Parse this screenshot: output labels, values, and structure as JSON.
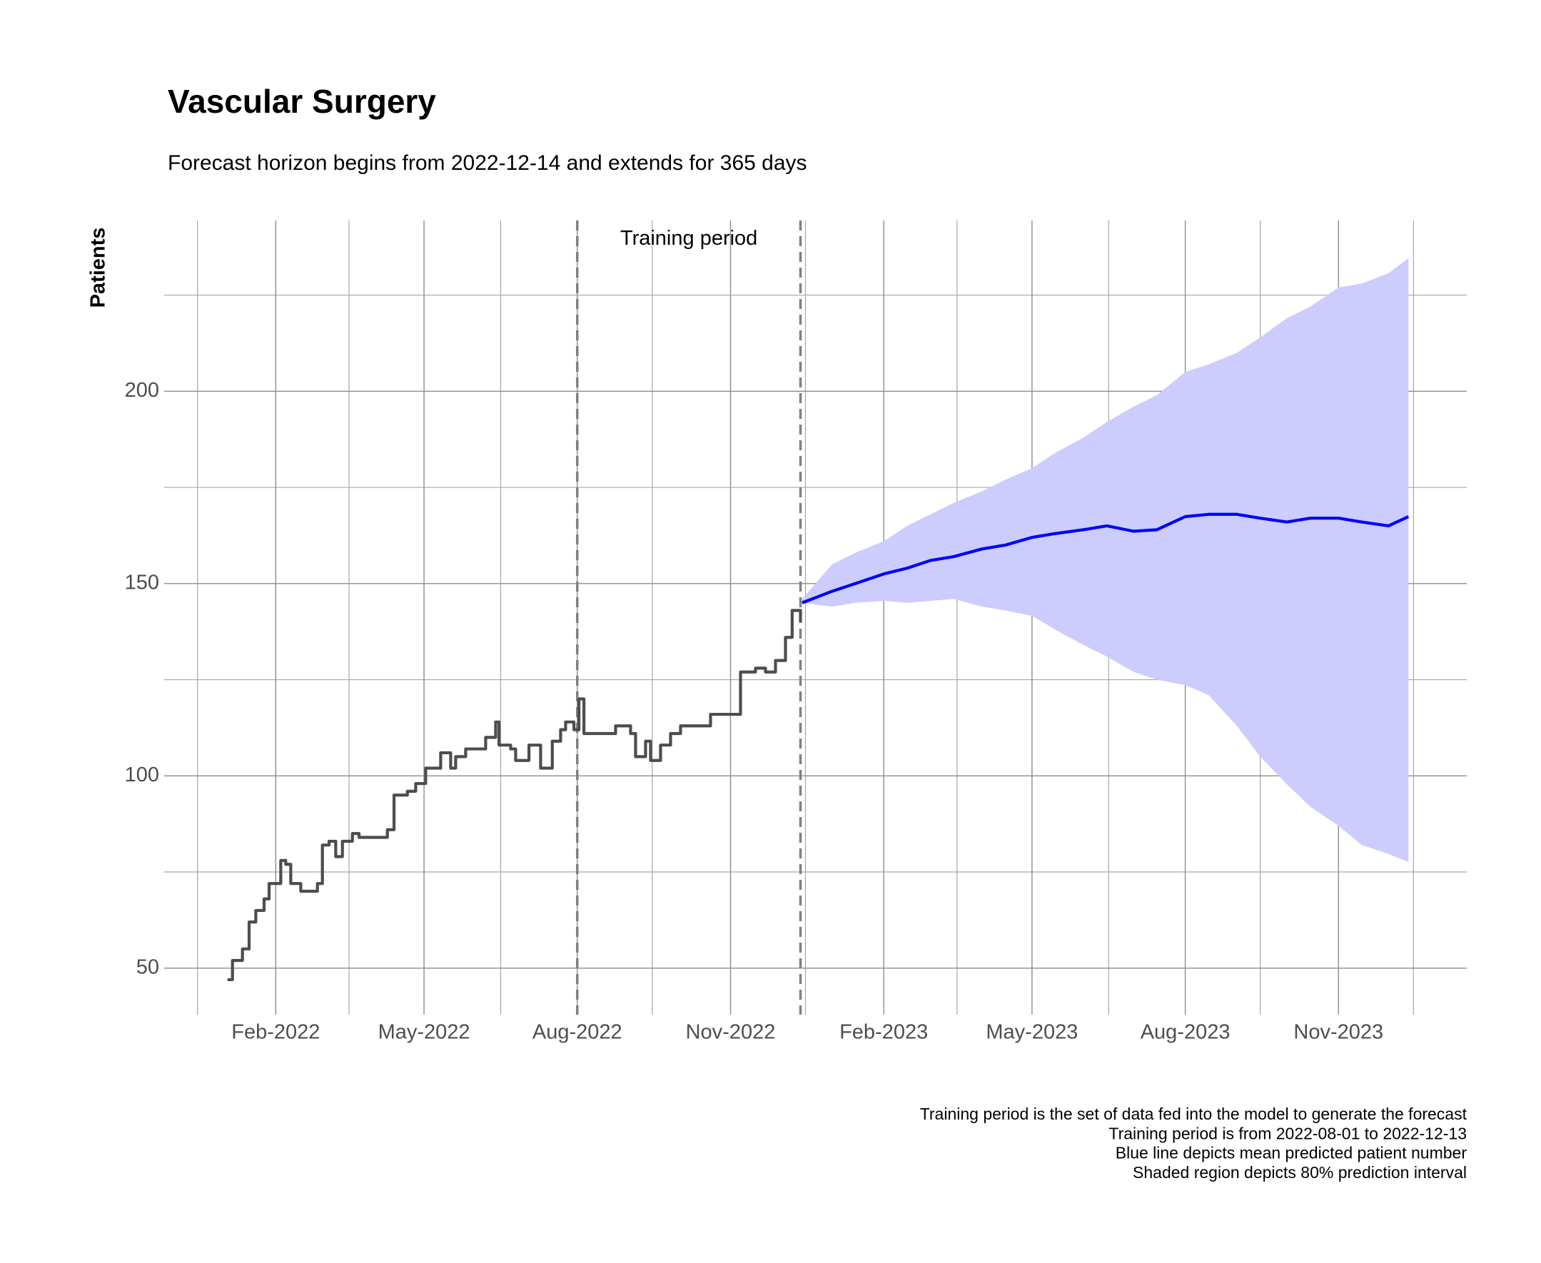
{
  "chart_data": {
    "type": "forecast",
    "title": "Vascular Surgery",
    "subtitle": "Forecast horizon begins from 2022-12-14 and extends for 365 days",
    "y_label": "Patients",
    "annotation": {
      "text": "Training period",
      "x": "2022-10-07",
      "y": 239.5
    },
    "vlines": [
      "2022-08-01",
      "2022-12-13"
    ],
    "caption": [
      "Training period is the set of data fed into the model to generate the forecast",
      "Training period is from 2022-08-01 to 2022-12-13",
      "Blue line depicts mean predicted patient number",
      "Shaded region depicts 80% prediction interval"
    ],
    "grid": true,
    "xlim": [
      "2021-11-26",
      "2024-01-17"
    ],
    "ylim": [
      37.9,
      244.4
    ],
    "xticks": [
      {
        "value": "2022-02-01",
        "label": "Feb-2022"
      },
      {
        "value": "2022-05-01",
        "label": "May-2022"
      },
      {
        "value": "2022-08-01",
        "label": "Aug-2022"
      },
      {
        "value": "2022-11-01",
        "label": "Nov-2022"
      },
      {
        "value": "2023-02-01",
        "label": "Feb-2023"
      },
      {
        "value": "2023-05-01",
        "label": "May-2023"
      },
      {
        "value": "2023-08-01",
        "label": "Aug-2023"
      },
      {
        "value": "2023-11-01",
        "label": "Nov-2023"
      }
    ],
    "x_minor_ticks": [
      "2021-12-16",
      "2022-03-17",
      "2022-06-16",
      "2022-09-15",
      "2022-12-16",
      "2023-03-17",
      "2023-06-16",
      "2023-09-15",
      "2023-12-16"
    ],
    "yticks": [
      50,
      100,
      150,
      200
    ],
    "y_minor_ticks": [
      75,
      125,
      175,
      225
    ],
    "history": {
      "color": "#4d4d4d",
      "x": [
        "2022-01-03",
        "2022-01-06",
        "2022-01-12",
        "2022-01-16",
        "2022-01-20",
        "2022-01-25",
        "2022-01-28",
        "2022-02-01",
        "2022-02-04",
        "2022-02-07",
        "2022-02-10",
        "2022-02-16",
        "2022-02-24",
        "2022-02-26",
        "2022-03-01",
        "2022-03-05",
        "2022-03-09",
        "2022-03-13",
        "2022-03-19",
        "2022-03-23",
        "2022-04-09",
        "2022-04-13",
        "2022-04-21",
        "2022-04-26",
        "2022-05-02",
        "2022-05-11",
        "2022-05-17",
        "2022-05-20",
        "2022-05-26",
        "2022-06-07",
        "2022-06-13",
        "2022-06-15",
        "2022-06-22",
        "2022-06-25",
        "2022-07-01",
        "2022-07-03",
        "2022-07-10",
        "2022-07-14",
        "2022-07-17",
        "2022-07-22",
        "2022-07-25",
        "2022-07-30",
        "2022-08-02",
        "2022-08-05",
        "2022-08-09",
        "2022-08-21",
        "2022-08-24",
        "2022-09-02",
        "2022-09-05",
        "2022-09-11",
        "2022-09-14",
        "2022-09-20",
        "2022-09-26",
        "2022-10-02",
        "2022-10-18",
        "2022-10-20",
        "2022-11-03",
        "2022-11-07",
        "2022-11-16",
        "2022-11-22",
        "2022-11-28",
        "2022-12-04",
        "2022-12-08",
        "2022-12-11",
        "2022-12-13"
      ],
      "values": [
        47,
        52,
        55,
        62,
        65,
        68,
        72,
        72,
        78,
        77,
        72,
        70,
        70,
        72,
        82,
        83,
        79,
        83,
        85,
        84,
        86,
        95,
        96,
        98,
        102,
        106,
        102,
        105,
        107,
        110,
        114,
        108,
        107,
        104,
        104,
        108,
        102,
        102,
        109,
        112,
        114,
        112,
        120,
        111,
        111,
        111,
        113,
        111,
        105,
        109,
        104,
        108,
        111,
        113,
        113,
        116,
        116,
        127,
        128,
        127,
        130,
        136,
        143,
        143,
        140
      ]
    },
    "forecast": {
      "color": "#0000ff",
      "band_color": "#ccccff",
      "x": [
        "2022-12-14",
        "2023-01-01",
        "2023-01-15",
        "2023-02-01",
        "2023-02-15",
        "2023-03-01",
        "2023-03-15",
        "2023-04-01",
        "2023-04-15",
        "2023-05-01",
        "2023-05-15",
        "2023-06-01",
        "2023-06-15",
        "2023-07-01",
        "2023-07-15",
        "2023-08-01",
        "2023-08-15",
        "2023-09-01",
        "2023-09-15",
        "2023-10-01",
        "2023-10-15",
        "2023-11-01",
        "2023-11-15",
        "2023-12-01",
        "2023-12-13"
      ],
      "mean": [
        145,
        148,
        150,
        152.5,
        154,
        156,
        157,
        159,
        160,
        162,
        163,
        164,
        165,
        163.6,
        164,
        167.4,
        168,
        168,
        167,
        166,
        167,
        167,
        166,
        165,
        167.4
      ],
      "lower": [
        145,
        144,
        145,
        145.5,
        145,
        145.5,
        146,
        144,
        143,
        141.6,
        138,
        134,
        131,
        127,
        125,
        123.6,
        121,
        113,
        105,
        97.8,
        92,
        87,
        82,
        79.7,
        77.6
      ],
      "upper": [
        146,
        155,
        158,
        161,
        165,
        168,
        171,
        174,
        177,
        180,
        184,
        188,
        192,
        196,
        199,
        205,
        207,
        210,
        214,
        219,
        222,
        227,
        228,
        230.7,
        234.6
      ]
    }
  }
}
